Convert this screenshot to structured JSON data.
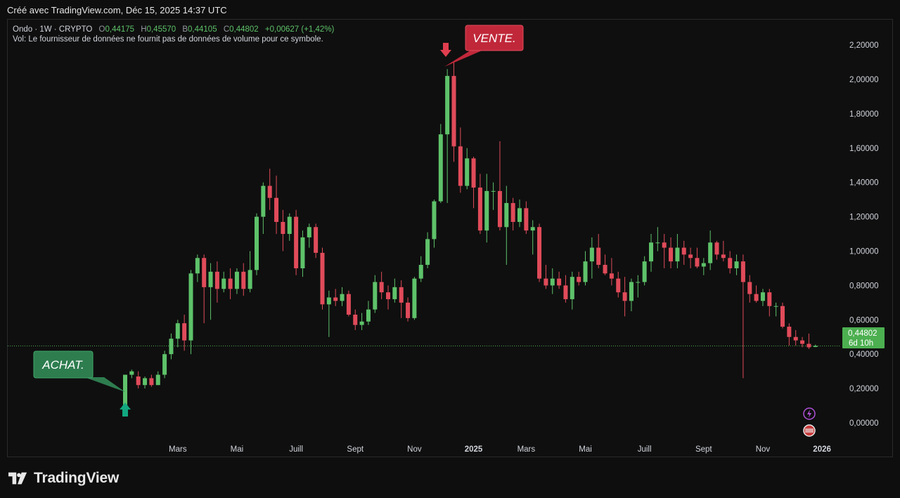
{
  "header": {
    "credit": "Créé avec TradingView.com, Déc 15, 2025 14:37 UTC"
  },
  "legend": {
    "symbol": "Ondo · 1W · CRYPTO",
    "o_label": "O",
    "o_value": "0,44175",
    "h_label": "H",
    "h_value": "0,45570",
    "b_label": "B",
    "b_value": "0,44105",
    "c_label": "C",
    "c_value": "0,44802",
    "change": "+0,00627 (+1,42%)",
    "vol_note": "Vol: Le fournisseur de données ne fournit pas de données de volume pour ce symbole."
  },
  "price_tag": {
    "value": "0,44802",
    "countdown": "6d 10h"
  },
  "annotations": {
    "buy": "ACHAT.",
    "sell": "VENTE."
  },
  "brand": {
    "name": "TradingView"
  },
  "colors": {
    "up": "#5ec26a",
    "down": "#e04b5a",
    "buy": "#2e7d4f",
    "sell": "#c0283a",
    "arrow_up": "#12a77f",
    "arrow_down": "#e03e4e"
  },
  "chart_data": {
    "type": "candlestick",
    "interval": "1W",
    "ylim": [
      -0.09,
      2.27
    ],
    "y_ticks": [
      "2,20000",
      "2,00000",
      "1,80000",
      "1,60000",
      "1,40000",
      "1,20000",
      "1,00000",
      "0,80000",
      "0,60000",
      "0,40000",
      "0,20000",
      "0,00000"
    ],
    "y_tick_values": [
      2.2,
      2.0,
      1.8,
      1.6,
      1.4,
      1.2,
      1.0,
      0.8,
      0.6,
      0.4,
      0.2,
      0.0
    ],
    "x_ticks": [
      {
        "label": "Mars",
        "index": 8,
        "bold": false
      },
      {
        "label": "Mai",
        "index": 17,
        "bold": false
      },
      {
        "label": "Juill",
        "index": 26,
        "bold": false
      },
      {
        "label": "Sept",
        "index": 35,
        "bold": false
      },
      {
        "label": "Nov",
        "index": 44,
        "bold": false
      },
      {
        "label": "2025",
        "index": 53,
        "bold": true
      },
      {
        "label": "Mars",
        "index": 61,
        "bold": false
      },
      {
        "label": "Mai",
        "index": 70,
        "bold": false
      },
      {
        "label": "Juill",
        "index": 79,
        "bold": false
      },
      {
        "label": "Sept",
        "index": 88,
        "bold": false
      },
      {
        "label": "Nov",
        "index": 97,
        "bold": false
      },
      {
        "label": "2026",
        "index": 106,
        "bold": true
      }
    ],
    "last_price": 0.44802,
    "candles": [
      [
        0.09,
        0.28,
        0.28,
        0.08
      ],
      [
        0.28,
        0.3,
        0.31,
        0.26
      ],
      [
        0.27,
        0.22,
        0.3,
        0.2
      ],
      [
        0.22,
        0.26,
        0.27,
        0.2
      ],
      [
        0.26,
        0.22,
        0.28,
        0.21
      ],
      [
        0.22,
        0.28,
        0.3,
        0.22
      ],
      [
        0.28,
        0.4,
        0.42,
        0.26
      ],
      [
        0.4,
        0.49,
        0.52,
        0.37
      ],
      [
        0.49,
        0.58,
        0.6,
        0.44
      ],
      [
        0.58,
        0.48,
        0.63,
        0.42
      ],
      [
        0.48,
        0.87,
        0.89,
        0.4
      ],
      [
        0.87,
        0.96,
        0.98,
        0.82
      ],
      [
        0.96,
        0.79,
        0.98,
        0.58
      ],
      [
        0.79,
        0.88,
        0.93,
        0.6
      ],
      [
        0.88,
        0.78,
        0.94,
        0.7
      ],
      [
        0.78,
        0.84,
        0.88,
        0.76
      ],
      [
        0.84,
        0.78,
        0.9,
        0.72
      ],
      [
        0.78,
        0.88,
        0.9,
        0.75
      ],
      [
        0.88,
        0.78,
        0.93,
        0.74
      ],
      [
        0.78,
        0.89,
        1.0,
        0.76
      ],
      [
        0.89,
        1.2,
        1.22,
        0.86
      ],
      [
        1.2,
        1.38,
        1.4,
        1.1
      ],
      [
        1.38,
        1.31,
        1.48,
        1.24
      ],
      [
        1.31,
        1.17,
        1.44,
        1.1
      ],
      [
        1.17,
        1.1,
        1.24,
        1.0
      ],
      [
        1.1,
        1.2,
        1.22,
        1.06
      ],
      [
        1.2,
        0.9,
        1.24,
        0.86
      ],
      [
        0.9,
        1.08,
        1.12,
        0.85
      ],
      [
        1.08,
        1.14,
        1.16,
        1.02
      ],
      [
        1.14,
        0.99,
        1.16,
        0.96
      ],
      [
        0.99,
        0.69,
        1.02,
        0.66
      ],
      [
        0.69,
        0.73,
        0.77,
        0.5
      ],
      [
        0.73,
        0.71,
        0.78,
        0.68
      ],
      [
        0.71,
        0.75,
        0.79,
        0.68
      ],
      [
        0.75,
        0.63,
        0.77,
        0.62
      ],
      [
        0.63,
        0.57,
        0.66,
        0.54
      ],
      [
        0.57,
        0.59,
        0.64,
        0.54
      ],
      [
        0.59,
        0.66,
        0.71,
        0.57
      ],
      [
        0.66,
        0.82,
        0.86,
        0.64
      ],
      [
        0.82,
        0.76,
        0.88,
        0.72
      ],
      [
        0.76,
        0.72,
        0.8,
        0.66
      ],
      [
        0.72,
        0.79,
        0.84,
        0.7
      ],
      [
        0.79,
        0.7,
        0.83,
        0.61
      ],
      [
        0.7,
        0.61,
        0.73,
        0.59
      ],
      [
        0.61,
        0.84,
        0.85,
        0.6
      ],
      [
        0.84,
        0.92,
        0.97,
        0.82
      ],
      [
        0.92,
        1.07,
        1.11,
        0.9
      ],
      [
        1.07,
        1.29,
        1.3,
        1.02
      ],
      [
        1.29,
        1.68,
        1.74,
        1.28
      ],
      [
        1.68,
        2.02,
        2.06,
        1.28
      ],
      [
        2.02,
        1.61,
        2.1,
        1.52
      ],
      [
        1.61,
        1.38,
        1.72,
        1.34
      ],
      [
        1.38,
        1.54,
        1.6,
        1.36
      ],
      [
        1.54,
        1.37,
        1.55,
        1.25
      ],
      [
        1.37,
        1.12,
        1.45,
        1.1
      ],
      [
        1.12,
        1.35,
        1.45,
        1.05
      ],
      [
        1.35,
        1.35,
        1.4,
        1.24
      ],
      [
        1.35,
        1.14,
        1.64,
        1.12
      ],
      [
        1.14,
        1.28,
        1.38,
        0.92
      ],
      [
        1.28,
        1.17,
        1.31,
        1.12
      ],
      [
        1.17,
        1.25,
        1.3,
        1.14
      ],
      [
        1.25,
        1.12,
        1.29,
        1.1
      ],
      [
        1.12,
        1.14,
        1.18,
        0.98
      ],
      [
        1.14,
        0.84,
        1.16,
        0.82
      ],
      [
        0.84,
        0.8,
        0.92,
        0.78
      ],
      [
        0.8,
        0.84,
        0.9,
        0.75
      ],
      [
        0.84,
        0.8,
        0.88,
        0.78
      ],
      [
        0.8,
        0.72,
        0.86,
        0.7
      ],
      [
        0.72,
        0.85,
        0.88,
        0.66
      ],
      [
        0.85,
        0.82,
        0.88,
        0.8
      ],
      [
        0.82,
        0.94,
        1.0,
        0.8
      ],
      [
        0.94,
        1.02,
        1.08,
        0.84
      ],
      [
        1.02,
        0.92,
        1.1,
        0.9
      ],
      [
        0.92,
        0.87,
        0.98,
        0.86
      ],
      [
        0.87,
        0.84,
        0.96,
        0.8
      ],
      [
        0.84,
        0.76,
        0.88,
        0.73
      ],
      [
        0.76,
        0.71,
        0.85,
        0.62
      ],
      [
        0.71,
        0.82,
        0.84,
        0.65
      ],
      [
        0.82,
        0.82,
        0.86,
        0.73
      ],
      [
        0.82,
        0.94,
        0.97,
        0.8
      ],
      [
        0.94,
        1.05,
        1.1,
        0.88
      ],
      [
        1.05,
        1.05,
        1.14,
        1.0
      ],
      [
        1.05,
        1.02,
        1.1,
        0.9
      ],
      [
        1.02,
        0.94,
        1.08,
        0.9
      ],
      [
        0.94,
        1.02,
        1.1,
        0.9
      ],
      [
        1.02,
        0.98,
        1.06,
        0.92
      ],
      [
        0.98,
        0.96,
        1.02,
        0.9
      ],
      [
        0.96,
        0.91,
        1.02,
        0.9
      ],
      [
        0.91,
        0.93,
        0.96,
        0.86
      ],
      [
        0.93,
        1.05,
        1.12,
        0.89
      ],
      [
        1.05,
        0.98,
        1.06,
        0.95
      ],
      [
        0.98,
        0.96,
        1.06,
        0.94
      ],
      [
        0.96,
        0.9,
        1.0,
        0.87
      ],
      [
        0.9,
        0.94,
        0.98,
        0.86
      ],
      [
        0.94,
        0.82,
        0.98,
        0.26
      ],
      [
        0.82,
        0.75,
        0.86,
        0.7
      ],
      [
        0.75,
        0.71,
        0.8,
        0.7
      ],
      [
        0.71,
        0.76,
        0.78,
        0.68
      ],
      [
        0.76,
        0.68,
        0.78,
        0.62
      ],
      [
        0.68,
        0.68,
        0.7,
        0.62
      ],
      [
        0.68,
        0.56,
        0.7,
        0.55
      ],
      [
        0.56,
        0.5,
        0.58,
        0.45
      ],
      [
        0.5,
        0.48,
        0.54,
        0.45
      ],
      [
        0.48,
        0.46,
        0.5,
        0.44
      ],
      [
        0.46,
        0.44,
        0.52,
        0.43
      ],
      [
        0.44175,
        0.44802,
        0.4557,
        0.44105
      ]
    ]
  }
}
